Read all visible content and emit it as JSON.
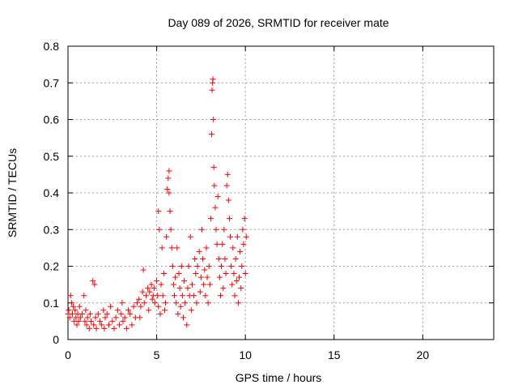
{
  "chart_data": {
    "type": "scatter",
    "title": "Day 089 of 2026, SRMTID for receiver mate",
    "xlabel": "GPS time / hours",
    "ylabel": "SRMTID / TECUs",
    "xlim": [
      0,
      24
    ],
    "ylim": [
      0,
      0.8
    ],
    "x_ticks": [
      0,
      5,
      10,
      15,
      20
    ],
    "y_ticks": [
      0,
      0.1,
      0.2,
      0.3,
      0.4,
      0.5,
      0.6,
      0.7,
      0.8
    ],
    "x_tick_labels": [
      "0",
      "5",
      "10",
      "15",
      "20"
    ],
    "y_tick_labels": [
      "0",
      "0.1",
      "0.2",
      "0.3",
      "0.4",
      "0.5",
      "0.6",
      "0.7",
      "0.8"
    ],
    "grid": true,
    "marker": "+",
    "color": "#ff0000",
    "series": [
      {
        "name": "mate",
        "points": [
          [
            0.0,
            0.07
          ],
          [
            0.05,
            0.08
          ],
          [
            0.1,
            0.06
          ],
          [
            0.15,
            0.12
          ],
          [
            0.2,
            0.1
          ],
          [
            0.25,
            0.07
          ],
          [
            0.3,
            0.09
          ],
          [
            0.35,
            0.05
          ],
          [
            0.4,
            0.08
          ],
          [
            0.45,
            0.06
          ],
          [
            0.5,
            0.04
          ],
          [
            0.55,
            0.07
          ],
          [
            0.6,
            0.05
          ],
          [
            0.65,
            0.09
          ],
          [
            0.7,
            0.06
          ],
          [
            0.8,
            0.07
          ],
          [
            0.9,
            0.12
          ],
          [
            0.95,
            0.05
          ],
          [
            1.0,
            0.08
          ],
          [
            1.05,
            0.04
          ],
          [
            1.1,
            0.06
          ],
          [
            1.2,
            0.03
          ],
          [
            1.25,
            0.07
          ],
          [
            1.3,
            0.05
          ],
          [
            1.4,
            0.16
          ],
          [
            1.45,
            0.04
          ],
          [
            1.5,
            0.15
          ],
          [
            1.55,
            0.06
          ],
          [
            1.6,
            0.03
          ],
          [
            1.7,
            0.07
          ],
          [
            1.8,
            0.05
          ],
          [
            1.9,
            0.04
          ],
          [
            2.0,
            0.08
          ],
          [
            2.05,
            0.03
          ],
          [
            2.1,
            0.06
          ],
          [
            2.2,
            0.07
          ],
          [
            2.3,
            0.04
          ],
          [
            2.4,
            0.09
          ],
          [
            2.5,
            0.05
          ],
          [
            2.6,
            0.03
          ],
          [
            2.7,
            0.06
          ],
          [
            2.8,
            0.08
          ],
          [
            2.9,
            0.04
          ],
          [
            3.0,
            0.07
          ],
          [
            3.05,
            0.1
          ],
          [
            3.1,
            0.05
          ],
          [
            3.2,
            0.06
          ],
          [
            3.3,
            0.03
          ],
          [
            3.4,
            0.08
          ],
          [
            3.5,
            0.07
          ],
          [
            3.6,
            0.04
          ],
          [
            3.7,
            0.09
          ],
          [
            3.8,
            0.06
          ],
          [
            3.9,
            0.1
          ],
          [
            4.0,
            0.11
          ],
          [
            4.05,
            0.06
          ],
          [
            4.1,
            0.09
          ],
          [
            4.2,
            0.13
          ],
          [
            4.25,
            0.19
          ],
          [
            4.3,
            0.1
          ],
          [
            4.4,
            0.12
          ],
          [
            4.5,
            0.14
          ],
          [
            4.55,
            0.08
          ],
          [
            4.6,
            0.13
          ],
          [
            4.7,
            0.15
          ],
          [
            4.75,
            0.11
          ],
          [
            4.8,
            0.12
          ],
          [
            4.85,
            0.14
          ],
          [
            4.9,
            0.1
          ],
          [
            5.0,
            0.16
          ],
          [
            5.05,
            0.12
          ],
          [
            5.1,
            0.09
          ],
          [
            5.1,
            0.35
          ],
          [
            5.15,
            0.3
          ],
          [
            5.2,
            0.07
          ],
          [
            5.25,
            0.15
          ],
          [
            5.3,
            0.25
          ],
          [
            5.35,
            0.12
          ],
          [
            5.4,
            0.18
          ],
          [
            5.45,
            0.08
          ],
          [
            5.5,
            0.1
          ],
          [
            5.55,
            0.28
          ],
          [
            5.6,
            0.41
          ],
          [
            5.65,
            0.44
          ],
          [
            5.7,
            0.46
          ],
          [
            5.7,
            0.4
          ],
          [
            5.75,
            0.35
          ],
          [
            5.8,
            0.3
          ],
          [
            5.85,
            0.25
          ],
          [
            5.9,
            0.2
          ],
          [
            5.95,
            0.15
          ],
          [
            6.0,
            0.12
          ],
          [
            6.05,
            0.17
          ],
          [
            6.1,
            0.1
          ],
          [
            6.15,
            0.25
          ],
          [
            6.2,
            0.07
          ],
          [
            6.25,
            0.18
          ],
          [
            6.3,
            0.14
          ],
          [
            6.35,
            0.09
          ],
          [
            6.4,
            0.2
          ],
          [
            6.45,
            0.12
          ],
          [
            6.5,
            0.06
          ],
          [
            6.55,
            0.16
          ],
          [
            6.6,
            0.1
          ],
          [
            6.7,
            0.04
          ],
          [
            6.75,
            0.14
          ],
          [
            6.8,
            0.2
          ],
          [
            6.85,
            0.12
          ],
          [
            6.9,
            0.28
          ],
          [
            6.95,
            0.08
          ],
          [
            7.0,
            0.15
          ],
          [
            7.1,
            0.12
          ],
          [
            7.15,
            0.22
          ],
          [
            7.2,
            0.18
          ],
          [
            7.25,
            0.1
          ],
          [
            7.3,
            0.2
          ],
          [
            7.4,
            0.24
          ],
          [
            7.45,
            0.13
          ],
          [
            7.5,
            0.17
          ],
          [
            7.55,
            0.3
          ],
          [
            7.6,
            0.22
          ],
          [
            7.65,
            0.15
          ],
          [
            7.7,
            0.19
          ],
          [
            7.75,
            0.12
          ],
          [
            7.8,
            0.25
          ],
          [
            7.85,
            0.17
          ],
          [
            7.9,
            0.1
          ],
          [
            7.95,
            0.2
          ],
          [
            8.0,
            0.15
          ],
          [
            8.05,
            0.33
          ],
          [
            8.1,
            0.56
          ],
          [
            8.12,
            0.68
          ],
          [
            8.15,
            0.7
          ],
          [
            8.17,
            0.71
          ],
          [
            8.2,
            0.6
          ],
          [
            8.22,
            0.47
          ],
          [
            8.25,
            0.42
          ],
          [
            8.3,
            0.36
          ],
          [
            8.35,
            0.3
          ],
          [
            8.4,
            0.26
          ],
          [
            8.45,
            0.39
          ],
          [
            8.5,
            0.22
          ],
          [
            8.55,
            0.17
          ],
          [
            8.6,
            0.12
          ],
          [
            8.65,
            0.2
          ],
          [
            8.7,
            0.26
          ],
          [
            8.75,
            0.14
          ],
          [
            8.8,
            0.3
          ],
          [
            8.85,
            0.22
          ],
          [
            8.9,
            0.18
          ],
          [
            8.95,
            0.42
          ],
          [
            9.0,
            0.45
          ],
          [
            9.05,
            0.38
          ],
          [
            9.1,
            0.33
          ],
          [
            9.15,
            0.28
          ],
          [
            9.2,
            0.2
          ],
          [
            9.25,
            0.15
          ],
          [
            9.3,
            0.25
          ],
          [
            9.35,
            0.18
          ],
          [
            9.4,
            0.12
          ],
          [
            9.45,
            0.22
          ],
          [
            9.5,
            0.16
          ],
          [
            9.55,
            0.28
          ],
          [
            9.6,
            0.1
          ],
          [
            9.65,
            0.17
          ],
          [
            9.7,
            0.24
          ],
          [
            9.75,
            0.14
          ],
          [
            9.8,
            0.2
          ],
          [
            9.85,
            0.3
          ],
          [
            9.9,
            0.26
          ],
          [
            9.95,
            0.33
          ],
          [
            10.0,
            0.18
          ],
          [
            10.05,
            0.28
          ]
        ]
      }
    ]
  }
}
